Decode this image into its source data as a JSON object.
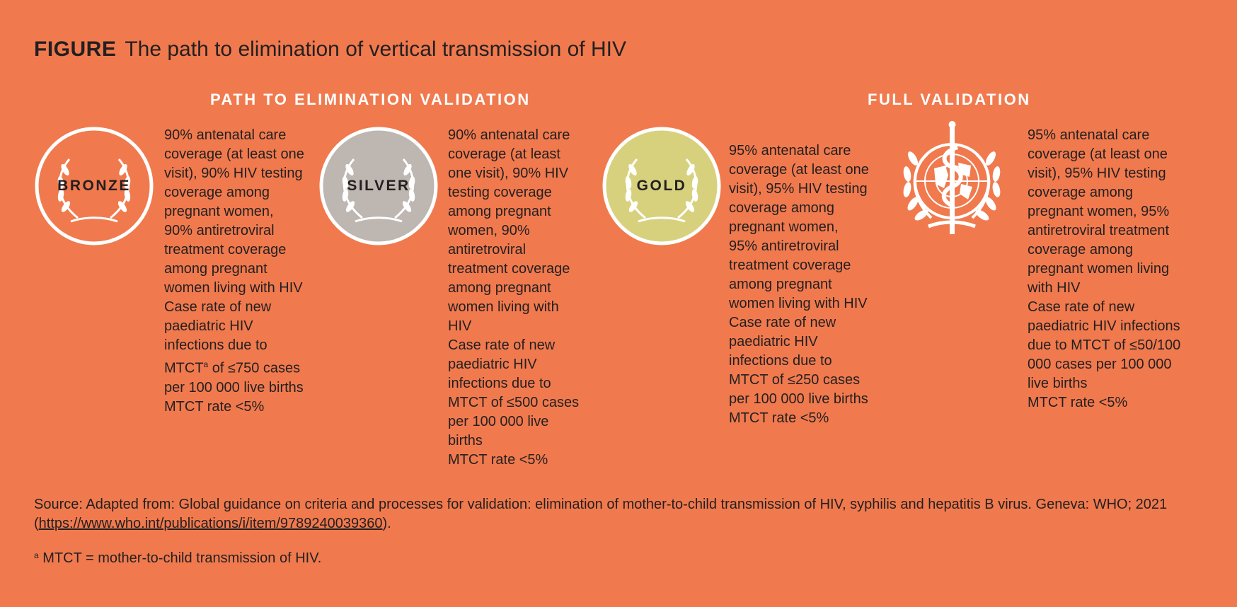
{
  "title": {
    "label": "FIGURE",
    "text": "The path to elimination of vertical transmission of HIV"
  },
  "sections": {
    "path": "PATH TO ELIMINATION VALIDATION",
    "full": "FULL VALIDATION"
  },
  "colors": {
    "background": "#F07A4E",
    "bronze": "#F07A4E",
    "silver": "#BDB6B1",
    "gold": "#D7D17E",
    "ring": "#FFFFFF"
  },
  "tiers": [
    {
      "name": "BRONZE",
      "icon": "laurel-wreath-icon",
      "lines": [
        "90% antenatal care",
        "coverage (at least one",
        "visit), 90% HIV testing",
        "coverage among",
        "pregnant women,",
        "90% antiretroviral",
        "treatment coverage",
        "among pregnant",
        "women living with HIV",
        "Case rate of new",
        "paediatric HIV",
        "infections due to",
        "MTCT",
        "of ≤750 cases",
        "per 100 000 live births",
        "MTCT rate <5%"
      ],
      "footnote_marker": "a"
    },
    {
      "name": "SILVER",
      "icon": "laurel-wreath-icon",
      "lines": [
        "90% antenatal care",
        "coverage (at least",
        "one visit), 90% HIV",
        "testing coverage",
        "among pregnant",
        "women, 90%",
        "antiretroviral",
        "treatment coverage",
        "among pregnant",
        "women living with",
        "HIV",
        "Case rate of new",
        "paediatric HIV",
        "infections due to",
        "MTCT of ≤500 cases",
        "per 100 000 live",
        "births",
        "MTCT rate <5%"
      ]
    },
    {
      "name": "GOLD",
      "icon": "laurel-wreath-icon",
      "lines": [
        "95% antenatal care",
        "coverage (at least one",
        "visit), 95% HIV testing",
        "coverage among",
        "pregnant women,",
        "95% antiretroviral",
        "treatment coverage",
        "among pregnant",
        "women living with HIV",
        "Case rate of new",
        "paediatric HIV",
        "infections due to",
        "MTCT of ≤250 cases",
        "per 100 000 live births",
        "MTCT rate <5%"
      ]
    },
    {
      "name": "",
      "icon": "who-emblem-icon",
      "lines": [
        "95% antenatal care",
        "coverage (at least one",
        "visit), 95% HIV testing",
        "coverage among",
        "pregnant women, 95%",
        "antiretroviral treatment",
        "coverage among",
        "pregnant women living",
        "with HIV",
        "Case rate of new",
        "paediatric HIV infections",
        "due to MTCT of ≤50/100",
        "000 cases per 100 000",
        "live births",
        "MTCT rate <5%"
      ]
    }
  ],
  "source": {
    "text": "Source: Adapted from: Global guidance on criteria and processes for validation: elimination of mother-to-child transmission of HIV, syphilis and hepatitis B virus. Geneva: WHO; 2021 (",
    "link": "https://www.who.int/publications/i/item/9789240039360",
    "end": ")."
  },
  "footnote": {
    "marker": "a",
    "text": "MTCT = mother-to-child transmission of HIV."
  }
}
